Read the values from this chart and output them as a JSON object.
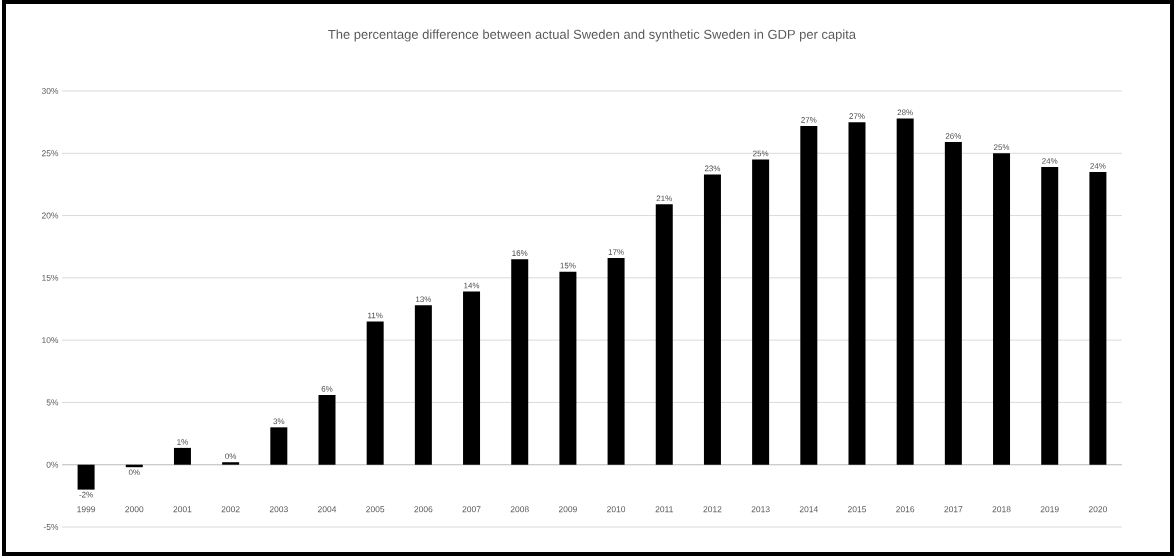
{
  "chart_data": {
    "type": "bar",
    "title": "The percentage difference between actual Sweden and synthetic Sweden in GDP per capita",
    "categories": [
      "1999",
      "2000",
      "2001",
      "2002",
      "2003",
      "2004",
      "2005",
      "2006",
      "2007",
      "2008",
      "2009",
      "2010",
      "2011",
      "2012",
      "2013",
      "2014",
      "2015",
      "2016",
      "2017",
      "2018",
      "2019",
      "2020"
    ],
    "values": [
      -2.0,
      -0.2,
      1.35,
      0.2,
      3.0,
      5.6,
      11.5,
      12.8,
      13.9,
      16.5,
      15.5,
      16.6,
      20.9,
      23.3,
      24.5,
      27.2,
      27.5,
      27.8,
      25.9,
      25.0,
      23.9,
      23.5
    ],
    "value_labels": [
      "-2%",
      "0%",
      "1%",
      "0%",
      "3%",
      "6%",
      "11%",
      "13%",
      "14%",
      "16%",
      "15%",
      "17%",
      "21%",
      "23%",
      "25%",
      "27%",
      "27%",
      "28%",
      "26%",
      "25%",
      "24%",
      "24%"
    ],
    "color": "#000000",
    "ylim": [
      -5,
      30
    ],
    "yticks": [
      {
        "value": -5,
        "label": "-5%"
      },
      {
        "value": 0,
        "label": "0%"
      },
      {
        "value": 5,
        "label": "5%"
      },
      {
        "value": 10,
        "label": "10%"
      },
      {
        "value": 15,
        "label": "15%"
      },
      {
        "value": 20,
        "label": "20%"
      },
      {
        "value": 25,
        "label": "25%"
      },
      {
        "value": 30,
        "label": "30%"
      }
    ],
    "grid": "y"
  }
}
